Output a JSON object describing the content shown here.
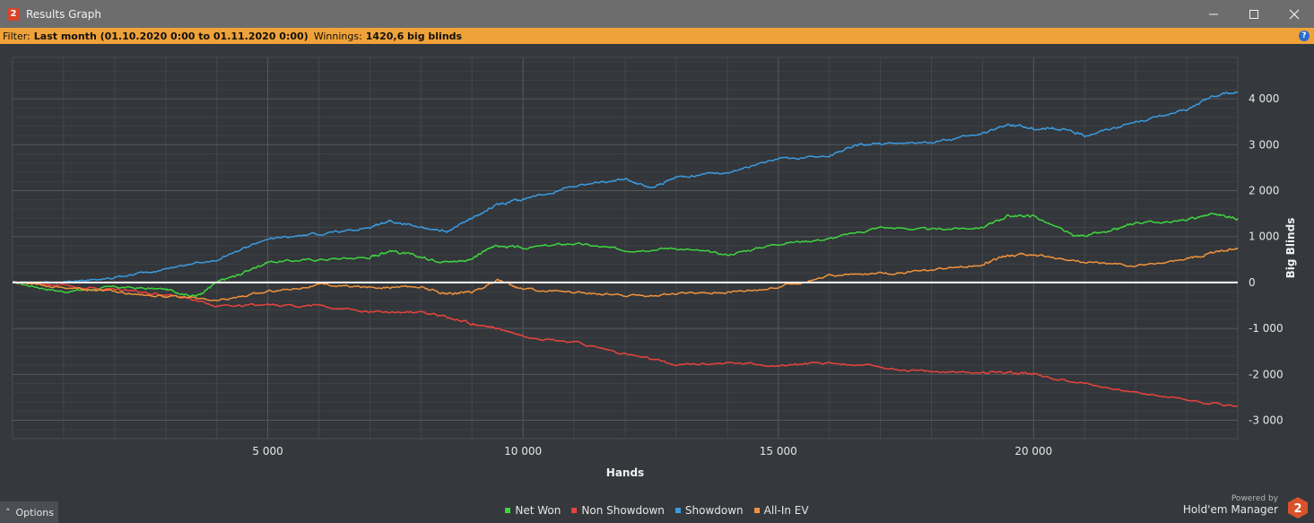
{
  "window": {
    "title": "Results Graph",
    "app_icon": "2"
  },
  "filter": {
    "label": "Filter:",
    "value": "Last month (01.10.2020 0:00 to 01.11.2020 0:00)",
    "winnings_label": "Winnings:",
    "winnings_value": "1420,6 big blinds",
    "help": "?"
  },
  "footer": {
    "options_label": "Options",
    "powered_by": "Powered by",
    "brand": "Hold'em Manager",
    "brand_logo": "2"
  },
  "colors": {
    "net_won": "#3ed43e",
    "non_showdown": "#e8433c",
    "showdown": "#3a9be0",
    "allin_ev": "#f0923a",
    "zero_line": "#ffffff",
    "plot_bg": "#33363a",
    "grid": "#4a4d51"
  },
  "chart_data": {
    "type": "line",
    "xlabel": "Hands",
    "ylabel": "Big Blinds",
    "xlim": [
      0,
      24000
    ],
    "ylim": [
      -3400,
      4900
    ],
    "x_ticks": [
      5000,
      10000,
      15000,
      20000
    ],
    "x_tick_labels": [
      "5 000",
      "10 000",
      "15 000",
      "20 000"
    ],
    "y_ticks": [
      4000,
      3000,
      2000,
      1000,
      0,
      -1000,
      -2000,
      -3000
    ],
    "y_tick_labels": [
      "4 000",
      "3 000",
      "2 000",
      "1 000",
      "0",
      "-1 000",
      "-2 000",
      "-3 000"
    ],
    "grid": true,
    "legend_position": "bottom-center",
    "series": [
      {
        "name": "Net Won",
        "color": "#3ed43e",
        "x": [
          0,
          1000,
          2000,
          3000,
          3600,
          4000,
          4500,
          5000,
          6000,
          7000,
          7400,
          8000,
          8500,
          9000,
          9400,
          10000,
          11000,
          12000,
          13000,
          14000,
          15000,
          16000,
          17000,
          18000,
          19000,
          19500,
          20000,
          20800,
          21500,
          22000,
          23000,
          23500,
          24000
        ],
        "y": [
          0,
          -200,
          -100,
          -150,
          -300,
          0,
          200,
          450,
          500,
          550,
          700,
          550,
          450,
          500,
          800,
          750,
          850,
          700,
          750,
          600,
          850,
          950,
          1200,
          1150,
          1200,
          1450,
          1450,
          1000,
          1100,
          1300,
          1350,
          1500,
          1400
        ]
      },
      {
        "name": "Non Showdown",
        "color": "#e8433c",
        "x": [
          0,
          1000,
          2000,
          3000,
          4000,
          5000,
          6000,
          7000,
          8000,
          8500,
          9000,
          9500,
          10000,
          11000,
          12000,
          13000,
          14000,
          15000,
          16000,
          17000,
          18000,
          19000,
          19500,
          20000,
          21000,
          22000,
          23000,
          24000
        ],
        "y": [
          0,
          -50,
          -150,
          -250,
          -500,
          -500,
          -500,
          -650,
          -650,
          -750,
          -900,
          -1000,
          -1150,
          -1300,
          -1550,
          -1800,
          -1750,
          -1800,
          -1750,
          -1850,
          -1950,
          -1950,
          -1950,
          -2000,
          -2200,
          -2400,
          -2550,
          -2700
        ]
      },
      {
        "name": "Showdown",
        "color": "#3a9be0",
        "x": [
          0,
          1000,
          2000,
          3000,
          4000,
          5000,
          6000,
          7000,
          7400,
          8000,
          8500,
          9000,
          9500,
          10000,
          11000,
          12000,
          12500,
          13000,
          14000,
          15000,
          16000,
          16500,
          17000,
          18000,
          19000,
          19500,
          20000,
          20500,
          21000,
          22000,
          23000,
          23500,
          24000
        ],
        "y": [
          0,
          0,
          100,
          300,
          500,
          950,
          1050,
          1200,
          1350,
          1200,
          1100,
          1400,
          1700,
          1800,
          2100,
          2250,
          2050,
          2300,
          2400,
          2700,
          2750,
          3000,
          3000,
          3050,
          3250,
          3450,
          3350,
          3350,
          3200,
          3500,
          3750,
          4050,
          4150
        ]
      },
      {
        "name": "All-In EV",
        "color": "#f0923a",
        "x": [
          0,
          1000,
          2000,
          3000,
          4000,
          5000,
          6000,
          7000,
          8000,
          8500,
          9000,
          9500,
          10000,
          11000,
          12000,
          13000,
          14000,
          15000,
          16000,
          17000,
          18000,
          19000,
          19500,
          20000,
          21000,
          22000,
          23000,
          23500,
          24000
        ],
        "y": [
          0,
          -100,
          -200,
          -300,
          -400,
          -200,
          -50,
          -100,
          -100,
          -250,
          -200,
          50,
          -150,
          -200,
          -300,
          -250,
          -200,
          -100,
          150,
          200,
          250,
          400,
          600,
          600,
          450,
          350,
          500,
          650,
          750
        ]
      }
    ]
  }
}
